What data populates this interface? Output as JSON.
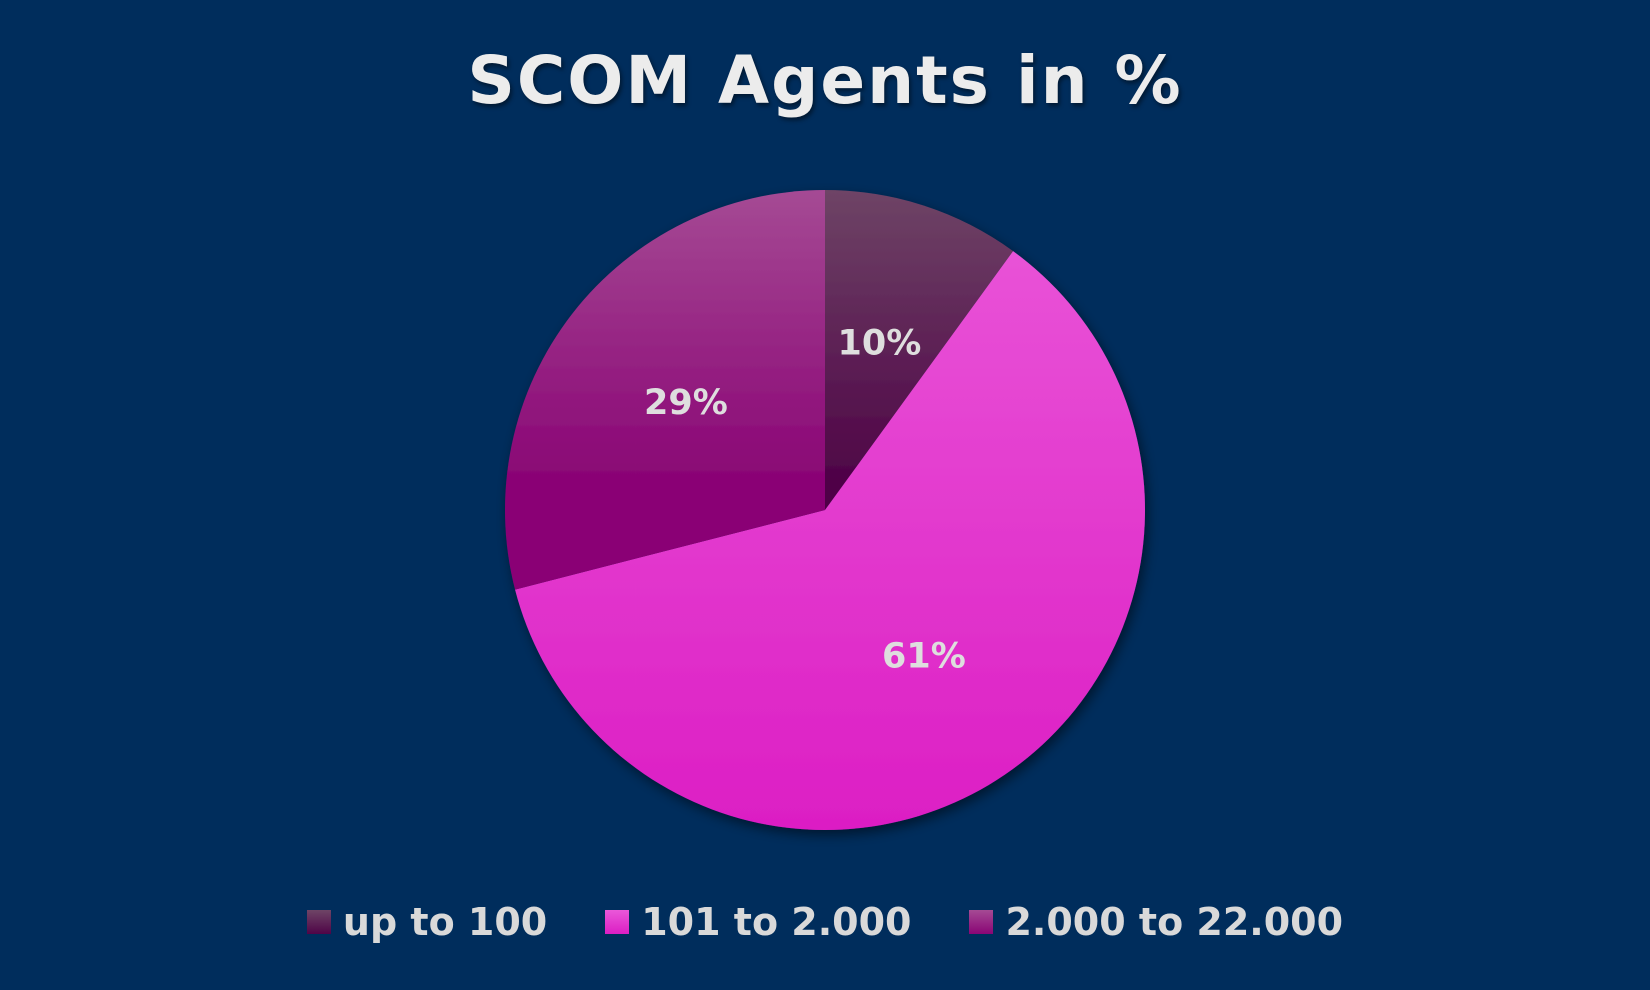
{
  "chart_data": {
    "type": "pie",
    "title": "SCOM Agents in %",
    "categories": [
      "up to 100",
      "101 to 2.000",
      "2.000 to 22.000"
    ],
    "values": [
      10,
      61,
      29
    ],
    "data_labels": [
      "10%",
      "61%",
      "29%"
    ],
    "colors": [
      [
        "#6e4466",
        "#4f0447"
      ],
      [
        "#ea58d9",
        "#dc1ec4"
      ],
      [
        "#a54a94",
        "#8a0575"
      ]
    ],
    "start_angle": "12 o'clock, clockwise",
    "legend_position": "bottom",
    "background": "#002d5c"
  }
}
